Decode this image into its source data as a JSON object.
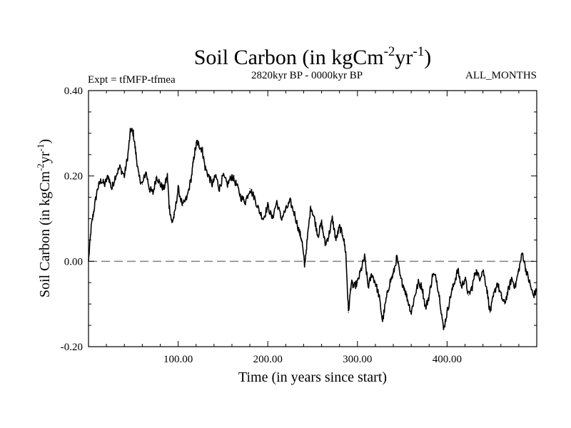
{
  "chart_data": {
    "type": "line",
    "title_main": "Soil Carbon (in kgCm",
    "title_sup1": "-2",
    "title_mid": "yr",
    "title_sup2": "-1",
    "title_end": ")",
    "subtitle_left": "Expt = tfMFP-tfmea",
    "subtitle_center": "2820kyr BP - 0000kyr BP",
    "subtitle_right": "ALL_MONTHS",
    "xlabel": "Time (in years since start)",
    "ylabel_main": "Soil Carbon (in kgCm",
    "ylabel_sup1": "-2",
    "ylabel_mid": "yr",
    "ylabel_sup2": "-1",
    "ylabel_end": ")",
    "xlim": [
      0,
      500
    ],
    "ylim": [
      -0.2,
      0.4
    ],
    "x_ticks": [
      {
        "value": 100,
        "label": "100.00"
      },
      {
        "value": 200,
        "label": "200.00"
      },
      {
        "value": 300,
        "label": "300.00"
      },
      {
        "value": 400,
        "label": "400.00"
      }
    ],
    "y_ticks": [
      {
        "value": 0.4,
        "label": "0.40"
      },
      {
        "value": 0.2,
        "label": "0.20"
      },
      {
        "value": 0.0,
        "label": "0.00"
      },
      {
        "value": -0.2,
        "label": "-0.20"
      }
    ],
    "reference_line": {
      "y": 0.0,
      "style": "dashed",
      "color": "#808080"
    },
    "series": [
      {
        "name": "Soil Carbon",
        "color": "#000000",
        "x": [
          0,
          3,
          6,
          10,
          14,
          18,
          22,
          26,
          30,
          35,
          40,
          44,
          47,
          50,
          53,
          56,
          60,
          64,
          68,
          72,
          76,
          80,
          84,
          88,
          90,
          93,
          96,
          100,
          105,
          110,
          115,
          118,
          121,
          124,
          127,
          130,
          134,
          138,
          142,
          146,
          150,
          155,
          160,
          165,
          170,
          175,
          180,
          185,
          190,
          195,
          200,
          205,
          210,
          215,
          220,
          225,
          230,
          235,
          238,
          241,
          244,
          248,
          252,
          256,
          260,
          264,
          268,
          272,
          276,
          280,
          284,
          287,
          290,
          293,
          296,
          300,
          304,
          308,
          312,
          316,
          320,
          324,
          328,
          332,
          336,
          340,
          344,
          348,
          352,
          356,
          360,
          364,
          368,
          372,
          376,
          380,
          384,
          388,
          392,
          396,
          400,
          404,
          408,
          412,
          416,
          420,
          424,
          428,
          432,
          436,
          440,
          444,
          448,
          452,
          456,
          460,
          464,
          468,
          472,
          476,
          480,
          484,
          488,
          492,
          496,
          500
        ],
        "values": [
          0.0,
          0.08,
          0.12,
          0.17,
          0.19,
          0.18,
          0.2,
          0.17,
          0.2,
          0.22,
          0.2,
          0.25,
          0.31,
          0.3,
          0.25,
          0.2,
          0.18,
          0.21,
          0.17,
          0.16,
          0.2,
          0.18,
          0.17,
          0.2,
          0.13,
          0.09,
          0.11,
          0.17,
          0.13,
          0.15,
          0.2,
          0.25,
          0.28,
          0.27,
          0.26,
          0.22,
          0.2,
          0.18,
          0.2,
          0.17,
          0.2,
          0.18,
          0.2,
          0.18,
          0.15,
          0.14,
          0.17,
          0.15,
          0.12,
          0.1,
          0.13,
          0.1,
          0.14,
          0.1,
          0.12,
          0.14,
          0.11,
          0.07,
          0.05,
          -0.01,
          0.05,
          0.13,
          0.1,
          0.06,
          0.09,
          0.04,
          0.06,
          0.1,
          0.05,
          0.08,
          0.06,
          0.02,
          -0.12,
          -0.05,
          -0.06,
          -0.05,
          -0.02,
          0.01,
          -0.06,
          -0.03,
          -0.05,
          -0.08,
          -0.14,
          -0.09,
          -0.05,
          -0.03,
          0.01,
          -0.04,
          -0.06,
          -0.09,
          -0.12,
          -0.08,
          -0.05,
          -0.06,
          -0.11,
          -0.08,
          -0.03,
          -0.04,
          -0.09,
          -0.16,
          -0.12,
          -0.08,
          -0.05,
          -0.02,
          -0.06,
          -0.04,
          -0.08,
          -0.06,
          -0.02,
          -0.04,
          -0.02,
          -0.06,
          -0.12,
          -0.08,
          -0.05,
          -0.08,
          -0.1,
          -0.07,
          -0.04,
          -0.06,
          -0.02,
          0.02,
          -0.02,
          -0.05,
          -0.08,
          -0.07
        ]
      }
    ]
  }
}
